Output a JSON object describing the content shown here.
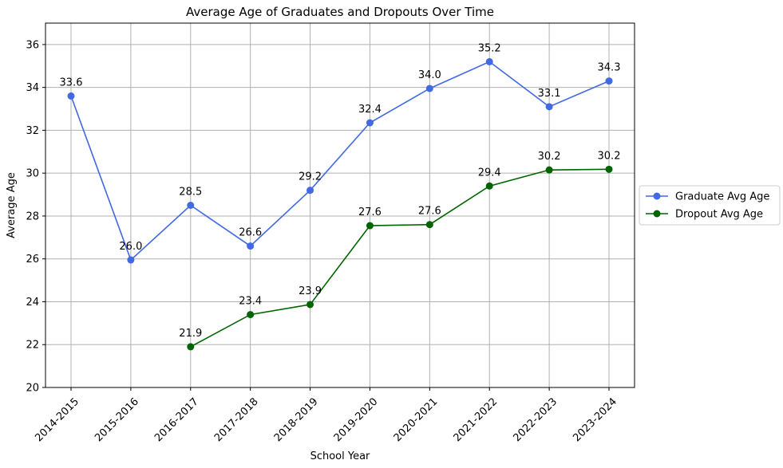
{
  "chart_data": {
    "type": "line",
    "title": "Average Age of Graduates and Dropouts Over Time",
    "xlabel": "School Year",
    "ylabel": "Average Age",
    "categories": [
      "2014-2015",
      "2015-2016",
      "2016-2017",
      "2017-2018",
      "2018-2019",
      "2019-2020",
      "2020-2021",
      "2021-2022",
      "2022-2023",
      "2023-2024"
    ],
    "ylim": [
      20,
      37
    ],
    "yticks": [
      20,
      22,
      24,
      26,
      28,
      30,
      32,
      34,
      36
    ],
    "grid": true,
    "legend_position": "right",
    "series": [
      {
        "name": "Graduate Avg Age",
        "color": "#4169e1",
        "values": [
          33.6,
          25.95,
          28.5,
          26.6,
          29.2,
          32.35,
          33.95,
          35.2,
          33.1,
          34.3
        ],
        "labels": [
          "33.6",
          "26.0",
          "28.5",
          "26.6",
          "29.2",
          "32.4",
          "34.0",
          "35.2",
          "33.1",
          "34.3"
        ]
      },
      {
        "name": "Dropout Avg Age",
        "color": "#006400",
        "values": [
          null,
          null,
          21.9,
          23.4,
          23.87,
          27.55,
          27.6,
          29.4,
          30.15,
          30.18
        ],
        "labels": [
          "",
          "",
          "21.9",
          "23.4",
          "23.9",
          "27.6",
          "27.6",
          "29.4",
          "30.2",
          "30.2"
        ]
      }
    ]
  }
}
